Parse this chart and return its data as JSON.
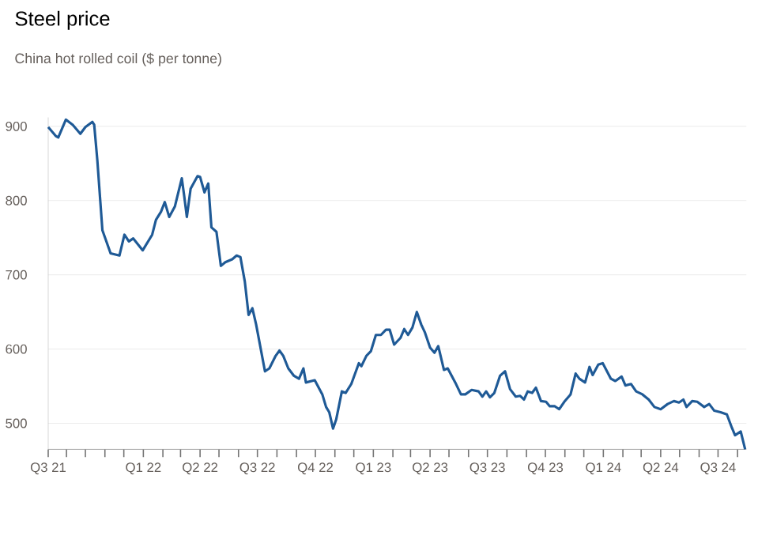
{
  "chart_data": {
    "type": "line",
    "title": "Steel price",
    "subtitle": "China hot rolled coil ($ per tonne)",
    "x": [
      "2021-08-03",
      "2021-08-15",
      "2021-08-19",
      "2021-08-31",
      "2021-09-11",
      "2021-09-23",
      "2021-10-01",
      "2021-10-12",
      "2021-10-15",
      "2021-10-20",
      "2021-10-28",
      "2021-11-10",
      "2021-11-24",
      "2021-12-02",
      "2021-12-09",
      "2021-12-16",
      "2021-12-31",
      "2022-01-15",
      "2022-01-21",
      "2022-01-29",
      "2022-02-04",
      "2022-02-11",
      "2022-02-20",
      "2022-03-03",
      "2022-03-07",
      "2022-03-11",
      "2022-03-17",
      "2022-03-28",
      "2022-04-01",
      "2022-04-08",
      "2022-04-14",
      "2022-04-19",
      "2022-04-27",
      "2022-05-04",
      "2022-05-11",
      "2022-05-22",
      "2022-05-29",
      "2022-06-04",
      "2022-06-11",
      "2022-06-17",
      "2022-06-23",
      "2022-06-29",
      "2022-07-13",
      "2022-07-20",
      "2022-07-30",
      "2022-08-05",
      "2022-08-11",
      "2022-08-19",
      "2022-08-28",
      "2022-09-05",
      "2022-09-12",
      "2022-09-16",
      "2022-09-30",
      "2022-10-12",
      "2022-10-18",
      "2022-10-23",
      "2022-10-29",
      "2022-11-03",
      "2022-11-12",
      "2022-11-18",
      "2022-11-27",
      "2022-12-09",
      "2022-12-13",
      "2022-12-21",
      "2022-12-28",
      "2023-01-05",
      "2023-01-13",
      "2023-01-21",
      "2023-01-27",
      "2023-02-03",
      "2023-02-13",
      "2023-02-19",
      "2023-02-25",
      "2023-03-04",
      "2023-03-11",
      "2023-03-18",
      "2023-03-24",
      "2023-04-01",
      "2023-04-08",
      "2023-04-14",
      "2023-04-23",
      "2023-04-29",
      "2023-05-11",
      "2023-05-20",
      "2023-05-27",
      "2023-06-06",
      "2023-06-17",
      "2023-06-23",
      "2023-06-29",
      "2023-07-05",
      "2023-07-12",
      "2023-07-21",
      "2023-07-29",
      "2023-08-06",
      "2023-08-15",
      "2023-08-22",
      "2023-08-28",
      "2023-09-03",
      "2023-09-10",
      "2023-09-16",
      "2023-09-24",
      "2023-10-02",
      "2023-10-08",
      "2023-10-16",
      "2023-10-23",
      "2023-10-31",
      "2023-11-10",
      "2023-11-18",
      "2023-11-24",
      "2023-12-03",
      "2023-12-10",
      "2023-12-15",
      "2023-12-24",
      "2023-12-31",
      "2024-01-13",
      "2024-01-20",
      "2024-01-30",
      "2024-02-05",
      "2024-02-14",
      "2024-02-22",
      "2024-03-03",
      "2024-03-13",
      "2024-03-22",
      "2024-04-01",
      "2024-04-12",
      "2024-04-22",
      "2024-04-30",
      "2024-05-07",
      "2024-05-12",
      "2024-05-21",
      "2024-05-29",
      "2024-06-09",
      "2024-06-17",
      "2024-06-25",
      "2024-07-05",
      "2024-07-15",
      "2024-07-23",
      "2024-07-28",
      "2024-08-06",
      "2024-08-13"
    ],
    "values": [
      899,
      887,
      885,
      909,
      902,
      890,
      899,
      906,
      902,
      854,
      760,
      729,
      726,
      754,
      745,
      749,
      733,
      754,
      774,
      785,
      798,
      778,
      792,
      830,
      805,
      778,
      816,
      833,
      832,
      811,
      823,
      764,
      758,
      712,
      717,
      721,
      726,
      724,
      691,
      646,
      655,
      633,
      570,
      574,
      591,
      598,
      591,
      574,
      564,
      560,
      574,
      555,
      558,
      539,
      522,
      515,
      493,
      505,
      543,
      541,
      553,
      581,
      577,
      591,
      597,
      619,
      619,
      626,
      626,
      606,
      615,
      627,
      619,
      629,
      650,
      633,
      622,
      602,
      595,
      604,
      572,
      574,
      555,
      539,
      539,
      545,
      543,
      536,
      543,
      535,
      541,
      564,
      570,
      546,
      536,
      537,
      532,
      543,
      541,
      548,
      530,
      529,
      523,
      523,
      519,
      529,
      539,
      567,
      560,
      555,
      576,
      565,
      579,
      581,
      560,
      557,
      563,
      551,
      553,
      543,
      539,
      532,
      522,
      519,
      526,
      530,
      528,
      532,
      522,
      530,
      529,
      522,
      526,
      517,
      515,
      512,
      494,
      484,
      489,
      465
    ],
    "color": "#1f5a96",
    "xlim": [
      "2021-08-03",
      "2024-08-15"
    ],
    "ylim": [
      465,
      912
    ],
    "xticks": [
      {
        "value": "2021-08-03",
        "label": "Q3 21"
      },
      {
        "value": "2021-09-01",
        "label": null
      },
      {
        "value": "2021-10-01",
        "label": null
      },
      {
        "value": "2021-11-01",
        "label": null
      },
      {
        "value": "2021-12-01",
        "label": null
      },
      {
        "value": "2022-01-01",
        "label": "Q1 22"
      },
      {
        "value": "2022-02-01",
        "label": null
      },
      {
        "value": "2022-03-01",
        "label": null
      },
      {
        "value": "2022-04-01",
        "label": "Q2 22"
      },
      {
        "value": "2022-05-01",
        "label": null
      },
      {
        "value": "2022-06-01",
        "label": null
      },
      {
        "value": "2022-07-01",
        "label": "Q3 22"
      },
      {
        "value": "2022-08-01",
        "label": null
      },
      {
        "value": "2022-09-01",
        "label": null
      },
      {
        "value": "2022-10-01",
        "label": "Q4 22"
      },
      {
        "value": "2022-11-01",
        "label": null
      },
      {
        "value": "2022-12-01",
        "label": null
      },
      {
        "value": "2023-01-01",
        "label": "Q1 23"
      },
      {
        "value": "2023-02-01",
        "label": null
      },
      {
        "value": "2023-03-01",
        "label": null
      },
      {
        "value": "2023-04-01",
        "label": "Q2 23"
      },
      {
        "value": "2023-05-01",
        "label": null
      },
      {
        "value": "2023-06-01",
        "label": null
      },
      {
        "value": "2023-07-01",
        "label": "Q3 23"
      },
      {
        "value": "2023-08-01",
        "label": null
      },
      {
        "value": "2023-09-01",
        "label": null
      },
      {
        "value": "2023-10-01",
        "label": "Q4 23"
      },
      {
        "value": "2023-11-01",
        "label": null
      },
      {
        "value": "2023-12-01",
        "label": null
      },
      {
        "value": "2024-01-01",
        "label": "Q1 24"
      },
      {
        "value": "2024-02-01",
        "label": null
      },
      {
        "value": "2024-03-01",
        "label": null
      },
      {
        "value": "2024-04-01",
        "label": "Q2 24"
      },
      {
        "value": "2024-05-01",
        "label": null
      },
      {
        "value": "2024-06-01",
        "label": null
      },
      {
        "value": "2024-07-01",
        "label": "Q3 24"
      },
      {
        "value": "2024-08-01",
        "label": null
      }
    ],
    "yticks": [
      500,
      600,
      700,
      800,
      900
    ],
    "grid": "y"
  }
}
